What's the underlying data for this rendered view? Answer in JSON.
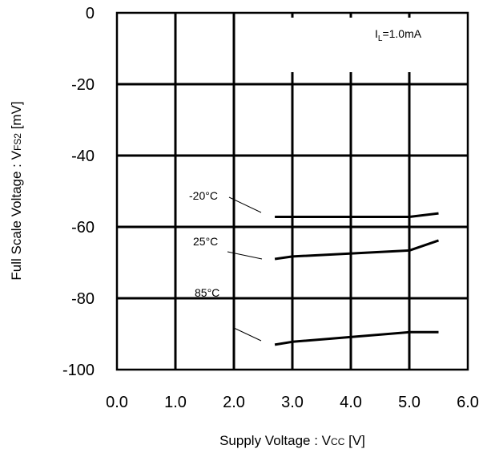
{
  "chart_data": {
    "type": "line",
    "xlabel": {
      "main": "Supply Voltage : V",
      "sub": "CC",
      "suffix": " [V]"
    },
    "ylabel": {
      "main": "Full Scale Voltage : V",
      "sub": "FS2",
      "suffix": " [mV]"
    },
    "xlim": [
      0,
      6
    ],
    "ylim": [
      -100,
      0
    ],
    "xticks": [
      "0.0",
      "1.0",
      "2.0",
      "3.0",
      "4.0",
      "5.0",
      "6.0"
    ],
    "yticks": [
      "0",
      "-20",
      "-40",
      "-60",
      "-80",
      "-100"
    ],
    "grid": true,
    "annotation": {
      "main": "I",
      "sub": "L",
      "suffix": "=1.0mA"
    },
    "series": [
      {
        "name": "-20°C",
        "x": [
          2.7,
          3.0,
          5.0,
          5.5
        ],
        "y": [
          -57.2,
          -57.2,
          -57.2,
          -56.2
        ]
      },
      {
        "name": "25°C",
        "x": [
          2.7,
          3.0,
          5.0,
          5.5
        ],
        "y": [
          -69.0,
          -68.3,
          -66.6,
          -63.8
        ]
      },
      {
        "name": "85°C",
        "x": [
          2.7,
          3.0,
          5.0,
          5.5
        ],
        "y": [
          -93.0,
          -92.2,
          -89.5,
          -89.5
        ]
      }
    ]
  }
}
